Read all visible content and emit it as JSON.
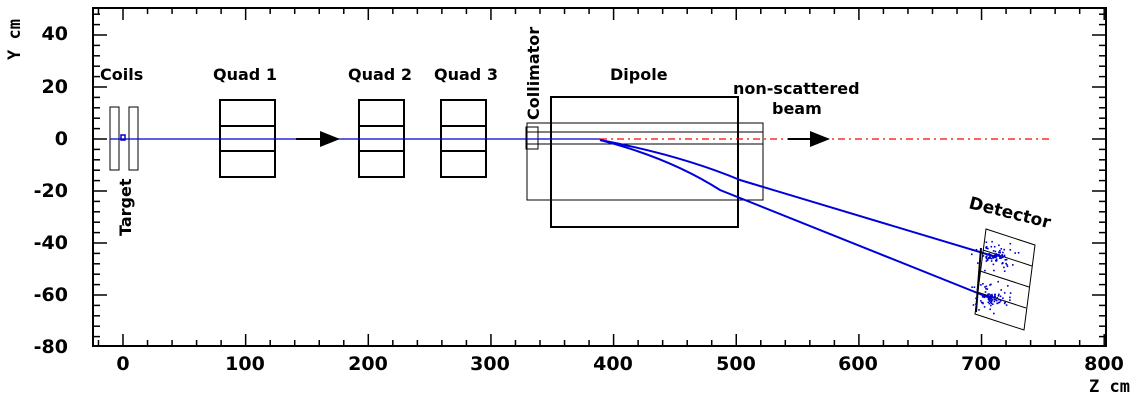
{
  "axes": {
    "xlabel": "Z cm",
    "ylabel": "Y cm",
    "xlim": [
      -30,
      800
    ],
    "ylim": [
      -80,
      50
    ],
    "xticks": [
      "0",
      "100",
      "200",
      "300",
      "400",
      "500",
      "600",
      "700",
      "800"
    ],
    "yticks": [
      "40",
      "20",
      "0",
      "-20",
      "-40",
      "-60",
      "-80"
    ]
  },
  "labels": {
    "coils": "Coils",
    "target": "Target",
    "quad1": "Quad 1",
    "quad2": "Quad 2",
    "quad3": "Quad 3",
    "collimator": "Collimator",
    "dipole": "Dipole",
    "beam_line1": "non-scattered",
    "beam_line2": "beam",
    "detector": "Detector"
  },
  "colors": {
    "beam": "#0000cc",
    "nonscattered": "#ff0000",
    "frame": "#000000"
  }
}
